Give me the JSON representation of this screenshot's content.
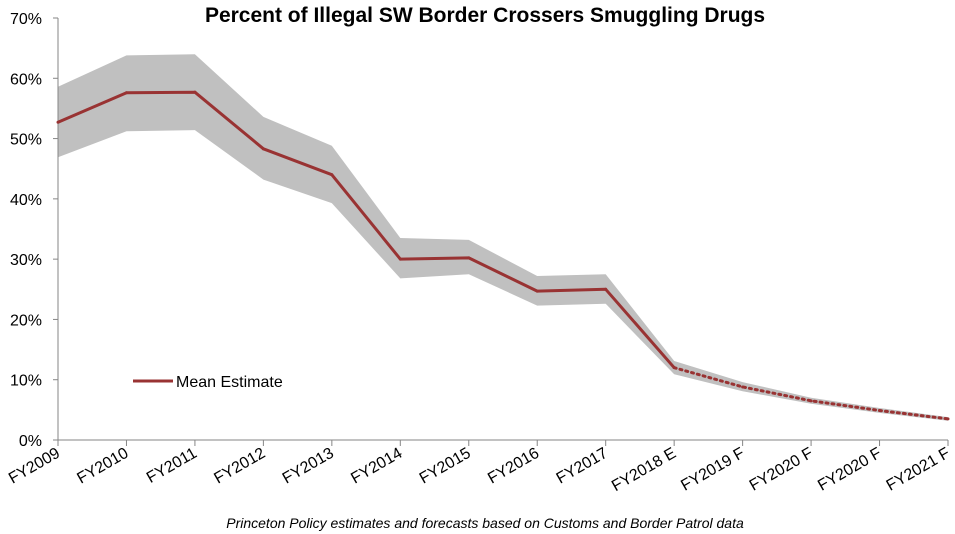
{
  "chart_data": {
    "type": "line",
    "title": "Percent of Illegal SW Border Crossers Smuggling Drugs",
    "caption": "Princeton Policy estimates and forecasts based on Customs and Border Patrol data",
    "xlabel": "",
    "ylabel": "",
    "categories": [
      "FY2009",
      "FY2010",
      "FY2011",
      "FY2012",
      "FY2013",
      "FY2014",
      "FY2015",
      "FY2016",
      "FY2017",
      "FY2018 E",
      "FY2019 F",
      "FY2020 F",
      "FY2020 F",
      "FY2021 F"
    ],
    "yticks": [
      0,
      10,
      20,
      30,
      40,
      50,
      60,
      70
    ],
    "ytick_labels": [
      "0%",
      "10%",
      "20%",
      "30%",
      "40%",
      "50%",
      "60%",
      "70%"
    ],
    "ylim": [
      0,
      70
    ],
    "grid": false,
    "legend_position": "lower-left",
    "series": [
      {
        "name": "Mean Estimate",
        "values": [
          52.7,
          57.6,
          57.7,
          48.3,
          44.0,
          30.0,
          30.2,
          24.7,
          25.0,
          12.0,
          8.8,
          6.5,
          4.9,
          3.5
        ],
        "solid_through_index": 9,
        "color": "#993333"
      }
    ],
    "band": {
      "upper": [
        58.6,
        63.8,
        64.0,
        53.6,
        48.8,
        33.5,
        33.2,
        27.2,
        27.5,
        13.1,
        9.6,
        7.0,
        5.3,
        3.8
      ],
      "lower": [
        46.9,
        51.2,
        51.4,
        43.2,
        39.3,
        26.8,
        27.5,
        22.3,
        22.6,
        10.9,
        8.1,
        6.0,
        4.5,
        3.2
      ],
      "color": "#c0c0c0"
    },
    "axis_color": "#868686"
  }
}
